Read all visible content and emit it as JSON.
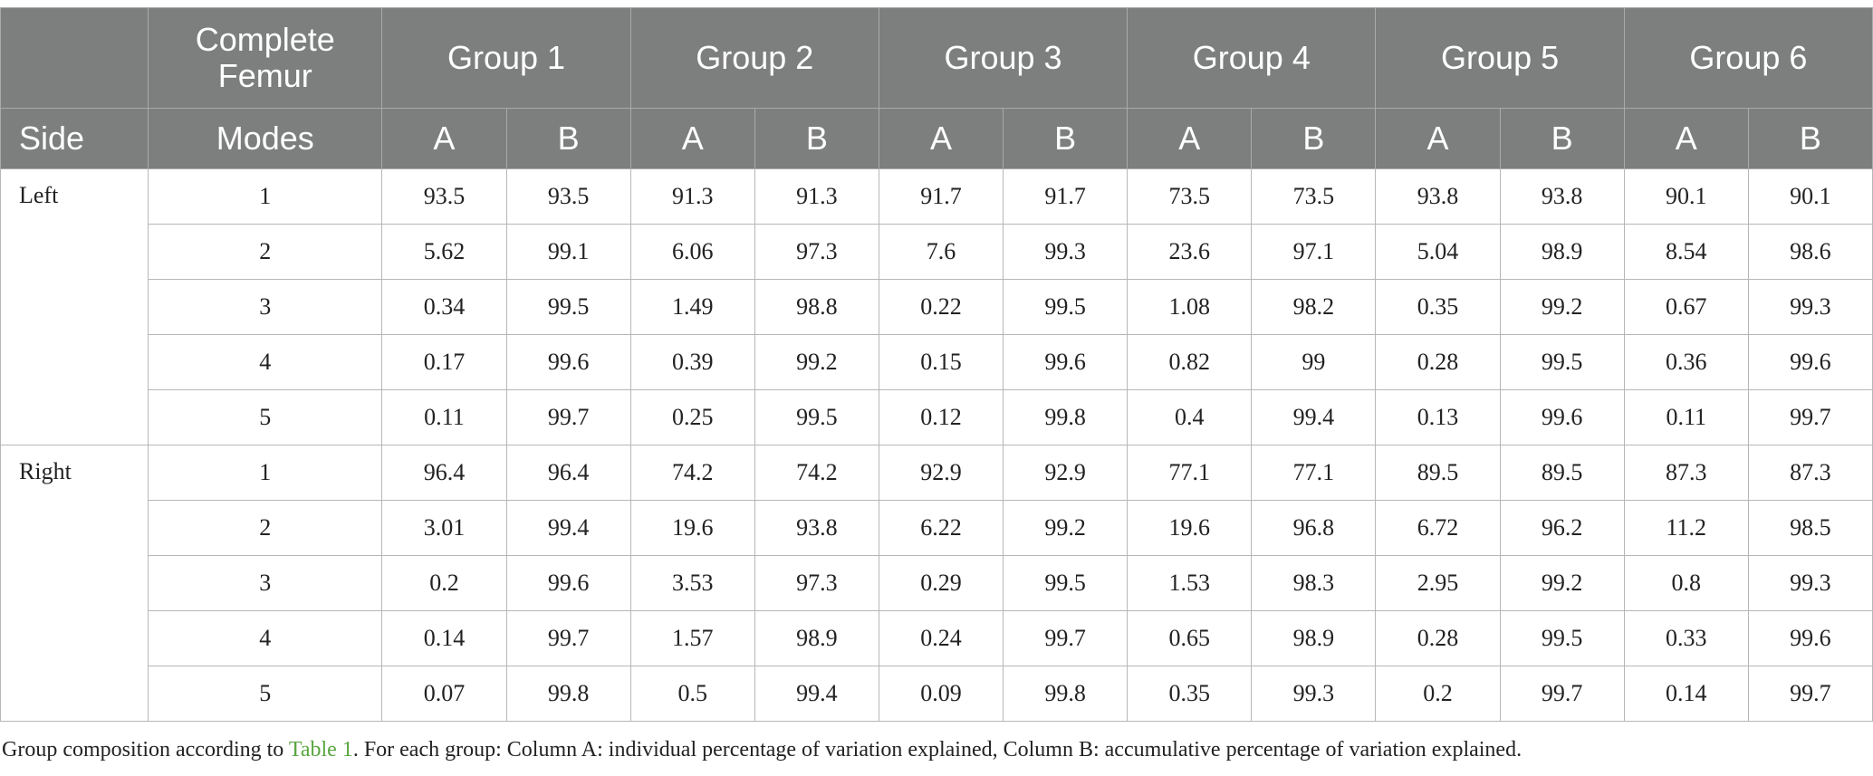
{
  "table": {
    "header_row1": {
      "first": "",
      "complete_femur": "Complete Femur",
      "groups": [
        "Group 1",
        "Group 2",
        "Group 3",
        "Group 4",
        "Group 5",
        "Group 6"
      ]
    },
    "header_row2": {
      "side": "Side",
      "modes": "Modes",
      "a": "A",
      "b": "B"
    },
    "sections": [
      {
        "side": "Left",
        "rows": [
          {
            "mode": "1",
            "values": [
              "93.5",
              "93.5",
              "91.3",
              "91.3",
              "91.7",
              "91.7",
              "73.5",
              "73.5",
              "93.8",
              "93.8",
              "90.1",
              "90.1"
            ]
          },
          {
            "mode": "2",
            "values": [
              "5.62",
              "99.1",
              "6.06",
              "97.3",
              "7.6",
              "99.3",
              "23.6",
              "97.1",
              "5.04",
              "98.9",
              "8.54",
              "98.6"
            ]
          },
          {
            "mode": "3",
            "values": [
              "0.34",
              "99.5",
              "1.49",
              "98.8",
              "0.22",
              "99.5",
              "1.08",
              "98.2",
              "0.35",
              "99.2",
              "0.67",
              "99.3"
            ]
          },
          {
            "mode": "4",
            "values": [
              "0.17",
              "99.6",
              "0.39",
              "99.2",
              "0.15",
              "99.6",
              "0.82",
              "99",
              "0.28",
              "99.5",
              "0.36",
              "99.6"
            ]
          },
          {
            "mode": "5",
            "values": [
              "0.11",
              "99.7",
              "0.25",
              "99.5",
              "0.12",
              "99.8",
              "0.4",
              "99.4",
              "0.13",
              "99.6",
              "0.11",
              "99.7"
            ]
          }
        ]
      },
      {
        "side": "Right",
        "rows": [
          {
            "mode": "1",
            "values": [
              "96.4",
              "96.4",
              "74.2",
              "74.2",
              "92.9",
              "92.9",
              "77.1",
              "77.1",
              "89.5",
              "89.5",
              "87.3",
              "87.3"
            ]
          },
          {
            "mode": "2",
            "values": [
              "3.01",
              "99.4",
              "19.6",
              "93.8",
              "6.22",
              "99.2",
              "19.6",
              "96.8",
              "6.72",
              "96.2",
              "11.2",
              "98.5"
            ]
          },
          {
            "mode": "3",
            "values": [
              "0.2",
              "99.6",
              "3.53",
              "97.3",
              "0.29",
              "99.5",
              "1.53",
              "98.3",
              "2.95",
              "99.2",
              "0.8",
              "99.3"
            ]
          },
          {
            "mode": "4",
            "values": [
              "0.14",
              "99.7",
              "1.57",
              "98.9",
              "0.24",
              "99.7",
              "0.65",
              "98.9",
              "0.28",
              "99.5",
              "0.33",
              "99.6"
            ]
          },
          {
            "mode": "5",
            "values": [
              "0.07",
              "99.8",
              "0.5",
              "99.4",
              "0.09",
              "99.8",
              "0.35",
              "99.3",
              "0.2",
              "99.7",
              "0.14",
              "99.7"
            ]
          }
        ]
      }
    ]
  },
  "footnote": {
    "prefix": "Group composition according to ",
    "link": "Table 1",
    "suffix": ". For each group: Column A: individual percentage of variation explained, Column B: accumulative percentage of variation explained."
  },
  "colors": {
    "header_bg": "#7d7f7e",
    "link": "#58a63f"
  }
}
